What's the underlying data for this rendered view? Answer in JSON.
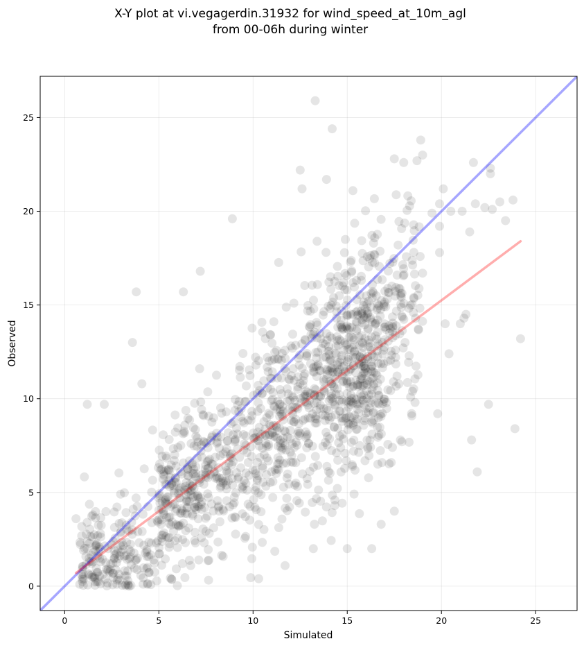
{
  "chart_data": {
    "type": "scatter",
    "title_lines": [
      "X-Y plot at vi.vegagerdin.31932 for wind_speed_at_10m_agl",
      "from 00-06h during winter"
    ],
    "xlabel": "Simulated",
    "ylabel": "Observed",
    "xlim": [
      -1.3,
      27.2
    ],
    "ylim": [
      -1.3,
      27.2
    ],
    "x_ticks": [
      0,
      5,
      10,
      15,
      20,
      25
    ],
    "y_ticks": [
      0,
      5,
      10,
      15,
      20,
      25
    ],
    "grid": true,
    "point_color": "#000000",
    "point_alpha": 0.1,
    "identity_line": {
      "from": [
        -1.3,
        -1.3
      ],
      "to": [
        27.2,
        27.2
      ],
      "color": "#0000ff"
    },
    "fit_line": {
      "from": [
        0.6,
        0.7
      ],
      "to": [
        24.2,
        18.4
      ],
      "color": "#ff0000"
    },
    "outliers": [
      [
        13.3,
        25.9
      ],
      [
        14.2,
        24.4
      ],
      [
        18.9,
        23.8
      ],
      [
        19.0,
        23.0
      ],
      [
        17.5,
        22.8
      ],
      [
        18.0,
        22.6
      ],
      [
        18.7,
        22.7
      ],
      [
        21.7,
        22.6
      ],
      [
        22.6,
        22.3
      ],
      [
        22.6,
        22.0
      ],
      [
        12.5,
        22.2
      ],
      [
        12.6,
        21.2
      ],
      [
        13.9,
        21.7
      ],
      [
        15.3,
        21.1
      ],
      [
        20.1,
        21.2
      ],
      [
        19.9,
        20.4
      ],
      [
        22.3,
        20.2
      ],
      [
        22.7,
        20.1
      ],
      [
        23.1,
        20.5
      ],
      [
        23.8,
        20.6
      ],
      [
        21.8,
        20.4
      ],
      [
        20.5,
        20.0
      ],
      [
        21.1,
        20.0
      ],
      [
        19.5,
        19.9
      ],
      [
        23.4,
        19.5
      ],
      [
        21.5,
        18.9
      ],
      [
        19.9,
        19.2
      ],
      [
        8.9,
        19.6
      ],
      [
        13.4,
        18.4
      ],
      [
        14.9,
        18.5
      ],
      [
        16.4,
        18.3
      ],
      [
        17.7,
        18.2
      ],
      [
        19.0,
        16.7
      ],
      [
        19.9,
        17.8
      ],
      [
        20.2,
        14.0
      ],
      [
        21.0,
        14.0
      ],
      [
        21.2,
        14.3
      ],
      [
        21.3,
        14.5
      ],
      [
        20.4,
        12.4
      ],
      [
        24.2,
        13.2
      ],
      [
        22.5,
        9.7
      ],
      [
        21.6,
        7.8
      ],
      [
        21.9,
        6.1
      ],
      [
        23.9,
        8.4
      ],
      [
        3.8,
        15.7
      ],
      [
        6.3,
        15.7
      ],
      [
        7.2,
        16.8
      ],
      [
        3.6,
        13.0
      ],
      [
        4.1,
        10.8
      ],
      [
        2.1,
        9.7
      ],
      [
        1.2,
        9.7
      ],
      [
        0.6,
        3.6
      ],
      [
        0.8,
        0.1
      ],
      [
        13.2,
        2.0
      ],
      [
        15.0,
        2.0
      ],
      [
        16.3,
        2.0
      ],
      [
        11.7,
        1.1
      ],
      [
        10.3,
        0.4
      ],
      [
        17.5,
        4.0
      ],
      [
        16.8,
        3.3
      ],
      [
        18.6,
        9.8
      ],
      [
        19.8,
        9.2
      ],
      [
        17.9,
        7.7
      ],
      [
        17.4,
        7.4
      ]
    ]
  }
}
